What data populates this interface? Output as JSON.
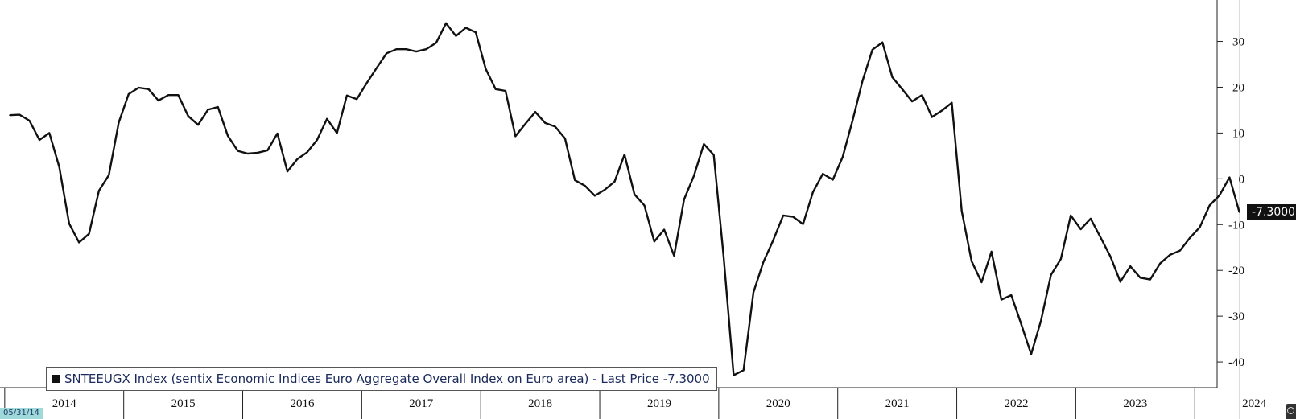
{
  "chart_data": {
    "type": "line",
    "x_start": "2014-01",
    "x_frequency": "monthly",
    "xlim": [
      "2014-01",
      "2024-08"
    ],
    "x_tick_labels": [
      "2014",
      "2015",
      "2016",
      "2017",
      "2018",
      "2019",
      "2020",
      "2021",
      "2022",
      "2023",
      "2024"
    ],
    "y_ticks": [
      30,
      20,
      10,
      0,
      -10,
      -20,
      -30,
      -40
    ],
    "y_tick_labels": [
      "30",
      "20",
      "10",
      "0",
      "-10",
      "-20",
      "-30",
      "-40"
    ],
    "ylim": [
      -43.5,
      38
    ],
    "y_axis_position": "right",
    "grid": false,
    "legend_placement": "bottom-left",
    "series": [
      {
        "name": "SNTEEUGX Index (sentix Economic Indices Euro Aggregate  Overall Index on Euro area) - Last Price -7.3000",
        "color": "#111111",
        "values": [
          13.9,
          14.0,
          12.7,
          8.5,
          10.0,
          2.6,
          -9.8,
          -13.9,
          -12.0,
          -2.6,
          0.8,
          12.3,
          18.5,
          19.9,
          19.6,
          17.1,
          18.3,
          18.3,
          13.7,
          11.8,
          15.1,
          15.7,
          9.4,
          6.1,
          5.5,
          5.7,
          6.2,
          9.9,
          1.6,
          4.3,
          5.8,
          8.5,
          13.1,
          10.0,
          18.2,
          17.4,
          20.9,
          24.2,
          27.4,
          28.3,
          28.3,
          27.8,
          28.3,
          29.7,
          34.0,
          31.2,
          33.0,
          32.0,
          24.0,
          19.6,
          19.2,
          9.3,
          12.0,
          14.6,
          12.2,
          11.4,
          8.8,
          -0.3,
          -1.5,
          -3.7,
          -2.4,
          -0.6,
          5.3,
          -3.4,
          -5.8,
          -13.7,
          -11.1,
          -16.8,
          -4.5,
          0.7,
          7.6,
          5.2,
          -17.1,
          -42.9,
          -41.8,
          -24.8,
          -18.2,
          -13.4,
          -8.0,
          -8.3,
          -9.9,
          -2.9,
          1.1,
          -0.2,
          4.8,
          12.8,
          21.4,
          28.2,
          29.8,
          22.2,
          19.6,
          16.9,
          18.3,
          13.5,
          14.9,
          16.6,
          -7.0,
          -18.0,
          -22.6,
          -15.9,
          -26.4,
          -25.4,
          -31.7,
          -38.3,
          -30.9,
          -21.0,
          -17.5,
          -8.0,
          -11.0,
          -8.7,
          -12.8,
          -17.0,
          -22.5,
          -19.1,
          -21.6,
          -22.0,
          -18.5,
          -16.6,
          -15.7,
          -12.9,
          -10.6,
          -5.8,
          -3.6,
          0.3,
          -7.3
        ]
      }
    ],
    "last_value_label": "-7.3000",
    "date_stamp": "05/31/14"
  }
}
